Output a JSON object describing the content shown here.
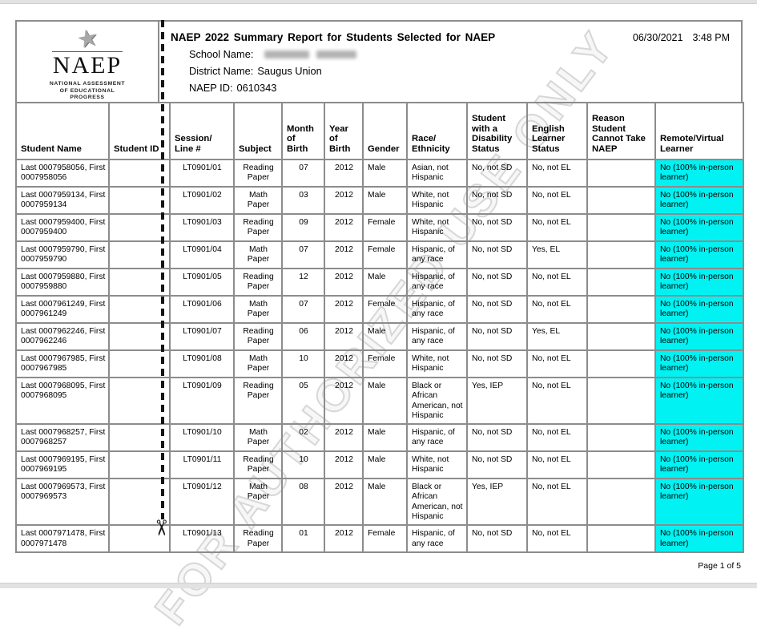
{
  "logo": {
    "acronym": "NAEP",
    "subtitle": "NATIONAL ASSESSMENT\nOF EDUCATIONAL\nPROGRESS"
  },
  "header": {
    "title": "NAEP 2022 Summary Report for Students Selected for NAEP",
    "date": "06/30/2021",
    "time": "3:48 PM",
    "school_label": "School Name:",
    "school_value": "",
    "school_value_redacted": true,
    "district_label": "District Name:",
    "district_value": "Saugus Union",
    "naep_id_label": "NAEP ID:",
    "naep_id_value": "0610343"
  },
  "watermark": {
    "text": "FOR AUTHORIZED USE ONLY"
  },
  "footer": {
    "text": "Page 1 of 5"
  },
  "table": {
    "highlight_color": "#00f2f2",
    "columns": [
      {
        "key": "student_name",
        "label": "Student Name"
      },
      {
        "key": "student_id",
        "label": "Student ID"
      },
      {
        "key": "session_line",
        "label": "Session/\nLine #"
      },
      {
        "key": "subject",
        "label": "Subject"
      },
      {
        "key": "month_of_birth",
        "label": "Month\nof\nBirth"
      },
      {
        "key": "year_of_birth",
        "label": "Year\nof\nBirth"
      },
      {
        "key": "gender",
        "label": "Gender"
      },
      {
        "key": "race_ethnicity",
        "label": "Race/\nEthnicity"
      },
      {
        "key": "disability_status",
        "label": "Student\nwith a\nDisability\nStatus"
      },
      {
        "key": "el_status",
        "label": "English\nLearner\nStatus"
      },
      {
        "key": "reason_cannot_take",
        "label": "Reason\nStudent\nCannot Take\nNAEP"
      },
      {
        "key": "remote_virtual",
        "label": "Remote/Virtual\nLearner"
      }
    ],
    "rows": [
      {
        "student_name": "Last 0007958056, First 0007958056",
        "student_id": "",
        "session_line": "LT0901/01",
        "subject": "Reading Paper",
        "month_of_birth": "07",
        "year_of_birth": "2012",
        "gender": "Male",
        "race_ethnicity": "Asian, not Hispanic",
        "disability_status": "No, not SD",
        "el_status": "No, not EL",
        "reason_cannot_take": "",
        "remote_virtual": "No (100% in-person learner)"
      },
      {
        "student_name": "Last 0007959134, First 0007959134",
        "student_id": "",
        "session_line": "LT0901/02",
        "subject": "Math Paper",
        "month_of_birth": "03",
        "year_of_birth": "2012",
        "gender": "Male",
        "race_ethnicity": "White, not Hispanic",
        "disability_status": "No, not SD",
        "el_status": "No, not EL",
        "reason_cannot_take": "",
        "remote_virtual": "No (100% in-person learner)"
      },
      {
        "student_name": "Last 0007959400, First 0007959400",
        "student_id": "",
        "session_line": "LT0901/03",
        "subject": "Reading Paper",
        "month_of_birth": "09",
        "year_of_birth": "2012",
        "gender": "Female",
        "race_ethnicity": "White, not Hispanic",
        "disability_status": "No, not SD",
        "el_status": "No, not EL",
        "reason_cannot_take": "",
        "remote_virtual": "No (100% in-person learner)"
      },
      {
        "student_name": "Last 0007959790, First 0007959790",
        "student_id": "",
        "session_line": "LT0901/04",
        "subject": "Math Paper",
        "month_of_birth": "07",
        "year_of_birth": "2012",
        "gender": "Female",
        "race_ethnicity": "Hispanic, of any race",
        "disability_status": "No, not SD",
        "el_status": "Yes, EL",
        "reason_cannot_take": "",
        "remote_virtual": "No (100% in-person learner)"
      },
      {
        "student_name": "Last 0007959880, First 0007959880",
        "student_id": "",
        "session_line": "LT0901/05",
        "subject": "Reading Paper",
        "month_of_birth": "12",
        "year_of_birth": "2012",
        "gender": "Male",
        "race_ethnicity": "Hispanic, of any race",
        "disability_status": "No, not SD",
        "el_status": "No, not EL",
        "reason_cannot_take": "",
        "remote_virtual": "No (100% in-person learner)"
      },
      {
        "student_name": "Last 0007961249, First 0007961249",
        "student_id": "",
        "session_line": "LT0901/06",
        "subject": "Math Paper",
        "month_of_birth": "07",
        "year_of_birth": "2012",
        "gender": "Female",
        "race_ethnicity": "Hispanic, of any race",
        "disability_status": "No, not SD",
        "el_status": "No, not EL",
        "reason_cannot_take": "",
        "remote_virtual": "No (100% in-person learner)"
      },
      {
        "student_name": "Last 0007962246, First 0007962246",
        "student_id": "",
        "session_line": "LT0901/07",
        "subject": "Reading Paper",
        "month_of_birth": "06",
        "year_of_birth": "2012",
        "gender": "Male",
        "race_ethnicity": "Hispanic, of any race",
        "disability_status": "No, not SD",
        "el_status": "Yes, EL",
        "reason_cannot_take": "",
        "remote_virtual": "No (100% in-person learner)"
      },
      {
        "student_name": "Last 0007967985, First 0007967985",
        "student_id": "",
        "session_line": "LT0901/08",
        "subject": "Math Paper",
        "month_of_birth": "10",
        "year_of_birth": "2012",
        "gender": "Female",
        "race_ethnicity": "White, not Hispanic",
        "disability_status": "No, not SD",
        "el_status": "No, not EL",
        "reason_cannot_take": "",
        "remote_virtual": "No (100% in-person learner)"
      },
      {
        "student_name": "Last 0007968095, First 0007968095",
        "student_id": "",
        "session_line": "LT0901/09",
        "subject": "Reading Paper",
        "month_of_birth": "05",
        "year_of_birth": "2012",
        "gender": "Male",
        "race_ethnicity": "Black or African American, not Hispanic",
        "disability_status": "Yes, IEP",
        "el_status": "No, not EL",
        "reason_cannot_take": "",
        "remote_virtual": "No (100% in-person learner)"
      },
      {
        "student_name": "Last 0007968257, First 0007968257",
        "student_id": "",
        "session_line": "LT0901/10",
        "subject": "Math Paper",
        "month_of_birth": "02",
        "year_of_birth": "2012",
        "gender": "Male",
        "race_ethnicity": "Hispanic, of any race",
        "disability_status": "No, not SD",
        "el_status": "No, not EL",
        "reason_cannot_take": "",
        "remote_virtual": "No (100% in-person learner)"
      },
      {
        "student_name": "Last 0007969195, First 0007969195",
        "student_id": "",
        "session_line": "LT0901/11",
        "subject": "Reading Paper",
        "month_of_birth": "10",
        "year_of_birth": "2012",
        "gender": "Male",
        "race_ethnicity": "White, not Hispanic",
        "disability_status": "No, not SD",
        "el_status": "No, not EL",
        "reason_cannot_take": "",
        "remote_virtual": "No (100% in-person learner)"
      },
      {
        "student_name": "Last 0007969573, First 0007969573",
        "student_id": "",
        "session_line": "LT0901/12",
        "subject": "Math Paper",
        "month_of_birth": "08",
        "year_of_birth": "2012",
        "gender": "Male",
        "race_ethnicity": "Black or African American, not Hispanic",
        "disability_status": "Yes, IEP",
        "el_status": "No, not EL",
        "reason_cannot_take": "",
        "remote_virtual": "No (100% in-person learner)"
      },
      {
        "student_name": "Last 0007971478, First 0007971478",
        "student_id": "",
        "session_line": "LT0901/13",
        "subject": "Reading Paper",
        "month_of_birth": "01",
        "year_of_birth": "2012",
        "gender": "Female",
        "race_ethnicity": "Hispanic, of any race",
        "disability_status": "No, not SD",
        "el_status": "No, not EL",
        "reason_cannot_take": "",
        "remote_virtual": "No (100% in-person learner)"
      }
    ]
  }
}
